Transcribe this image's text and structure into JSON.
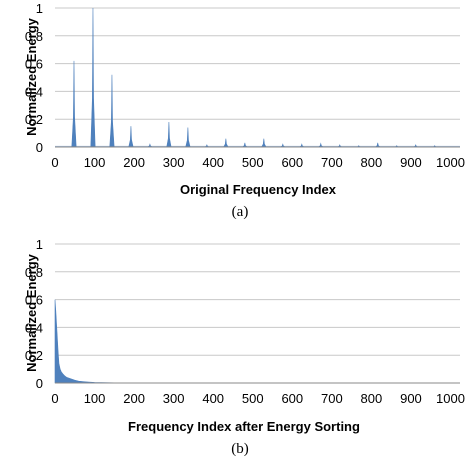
{
  "chart_data": [
    {
      "type": "area",
      "caption": "(a)",
      "xlabel": "Original Frequency Index",
      "ylabel": "Normalized Energy",
      "xlim": [
        0,
        1024
      ],
      "ylim": [
        0,
        1
      ],
      "xticks": [
        0,
        100,
        200,
        300,
        400,
        500,
        600,
        700,
        800,
        900,
        1000
      ],
      "yticks": [
        0,
        0.2,
        0.4,
        0.6,
        0.8,
        1
      ],
      "ytick_labels": [
        "0",
        "0.2",
        "0.4",
        "0.6",
        "0.8",
        "1"
      ],
      "grid": true,
      "color": "#4f81bd",
      "baseline": 0.008,
      "peaks": [
        {
          "x": 48,
          "y": 0.62
        },
        {
          "x": 96,
          "y": 1.0
        },
        {
          "x": 144,
          "y": 0.52
        },
        {
          "x": 192,
          "y": 0.15
        },
        {
          "x": 240,
          "y": 0.02
        },
        {
          "x": 288,
          "y": 0.18
        },
        {
          "x": 336,
          "y": 0.14
        },
        {
          "x": 384,
          "y": 0.015
        },
        {
          "x": 432,
          "y": 0.06
        },
        {
          "x": 480,
          "y": 0.03
        },
        {
          "x": 528,
          "y": 0.06
        },
        {
          "x": 576,
          "y": 0.02
        },
        {
          "x": 624,
          "y": 0.02
        },
        {
          "x": 672,
          "y": 0.025
        },
        {
          "x": 720,
          "y": 0.015
        },
        {
          "x": 768,
          "y": 0.01
        },
        {
          "x": 816,
          "y": 0.03
        },
        {
          "x": 864,
          "y": 0.01
        },
        {
          "x": 912,
          "y": 0.015
        },
        {
          "x": 960,
          "y": 0.01
        }
      ]
    },
    {
      "type": "area",
      "caption": "(b)",
      "xlabel": "Frequency Index after Energy Sorting",
      "ylabel": "Normalized Energy",
      "xlim": [
        0,
        1024
      ],
      "ylim": [
        0,
        1
      ],
      "xticks": [
        0,
        100,
        200,
        300,
        400,
        500,
        600,
        700,
        800,
        900,
        1000
      ],
      "yticks": [
        0,
        0.2,
        0.4,
        0.6,
        0.8,
        1
      ],
      "ytick_labels": [
        "0",
        "0.2",
        "0.4",
        "0.6",
        "0.8",
        "1"
      ],
      "grid": true,
      "color": "#4f81bd",
      "points": [
        {
          "x": 0,
          "y": 0.6
        },
        {
          "x": 2,
          "y": 0.52
        },
        {
          "x": 4,
          "y": 0.42
        },
        {
          "x": 6,
          "y": 0.32
        },
        {
          "x": 8,
          "y": 0.22
        },
        {
          "x": 10,
          "y": 0.14
        },
        {
          "x": 13,
          "y": 0.1
        },
        {
          "x": 16,
          "y": 0.08
        },
        {
          "x": 20,
          "y": 0.065
        },
        {
          "x": 25,
          "y": 0.05
        },
        {
          "x": 30,
          "y": 0.04
        },
        {
          "x": 40,
          "y": 0.03
        },
        {
          "x": 50,
          "y": 0.02
        },
        {
          "x": 60,
          "y": 0.013
        },
        {
          "x": 80,
          "y": 0.008
        },
        {
          "x": 100,
          "y": 0.004
        },
        {
          "x": 150,
          "y": 0.001
        },
        {
          "x": 200,
          "y": 0
        }
      ]
    }
  ]
}
